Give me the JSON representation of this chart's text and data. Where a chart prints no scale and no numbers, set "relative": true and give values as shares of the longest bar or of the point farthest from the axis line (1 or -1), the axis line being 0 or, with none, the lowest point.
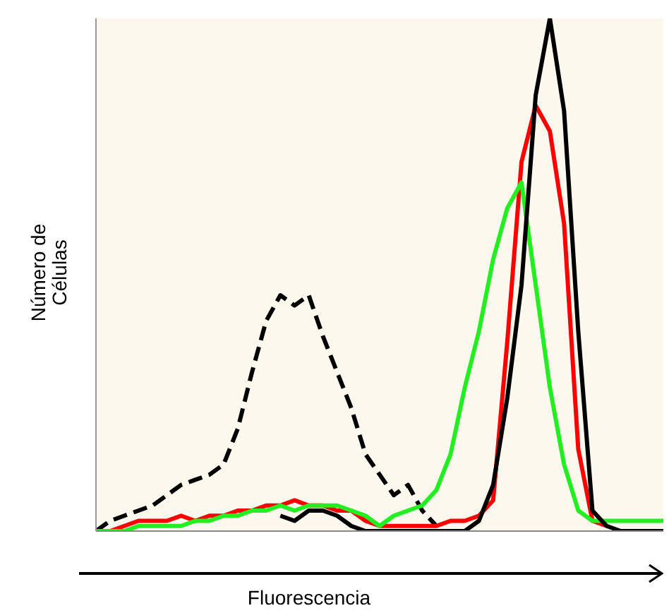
{
  "chart_data": {
    "type": "line",
    "relative": true,
    "xlabel": "Fluorescencia",
    "ylabel": "Número de Células",
    "legend": false,
    "grid": false,
    "marker": "none",
    "categories": [
      null,
      null,
      null,
      null,
      null,
      null,
      null,
      null,
      null,
      null,
      null,
      null,
      null,
      null,
      null,
      null,
      null,
      null,
      null,
      null,
      null,
      null,
      null,
      null,
      null,
      null,
      null,
      null,
      null,
      null,
      null,
      null,
      null,
      null,
      null,
      null,
      null,
      null,
      null,
      null,
      null
    ],
    "series": [
      {
        "color": "#000000",
        "line_style": "dashed",
        "values": [
          0,
          0.02,
          0.03,
          0.04,
          0.05,
          0.07,
          0.09,
          0.1,
          0.11,
          0.13,
          0.2,
          0.31,
          0.41,
          0.46,
          0.44,
          0.46,
          0.38,
          0.31,
          0.24,
          0.15,
          0.11,
          0.07,
          0.09,
          0.04,
          0.01,
          null,
          null,
          null,
          null,
          null,
          null,
          null,
          null,
          null,
          null,
          null,
          null,
          null,
          null,
          null,
          null
        ]
      },
      {
        "color": "#ff0000",
        "line_style": "solid",
        "values": [
          0,
          0,
          0.01,
          0.02,
          0.02,
          0.02,
          0.03,
          0.02,
          0.03,
          0.03,
          0.04,
          0.04,
          0.05,
          0.05,
          0.06,
          0.05,
          0.05,
          0.04,
          0.04,
          0.02,
          0.01,
          0.01,
          0.01,
          0.01,
          0.01,
          0.02,
          0.02,
          0.03,
          0.06,
          0.37,
          0.72,
          0.83,
          0.78,
          0.6,
          0.16,
          0.02,
          0.01,
          null,
          null,
          null,
          null
        ]
      },
      {
        "color": "#22ee22",
        "line_style": "solid",
        "values": [
          0,
          0,
          0,
          0.01,
          0.01,
          0.01,
          0.01,
          0.02,
          0.02,
          0.03,
          0.03,
          0.04,
          0.04,
          0.05,
          0.04,
          0.05,
          0.05,
          0.05,
          0.04,
          0.03,
          0.01,
          0.03,
          0.04,
          0.05,
          0.08,
          0.15,
          0.28,
          0.39,
          0.53,
          0.63,
          0.68,
          0.48,
          0.28,
          0.13,
          0.04,
          0.02,
          0.02,
          0.02,
          0.02,
          0.02,
          0.02
        ]
      },
      {
        "color": "#000000",
        "line_style": "solid",
        "values": [
          null,
          null,
          null,
          null,
          null,
          null,
          null,
          null,
          null,
          null,
          null,
          null,
          null,
          0.03,
          0.02,
          0.04,
          0.04,
          0.03,
          0.01,
          0,
          0,
          0,
          0,
          0,
          0,
          0,
          0,
          0.02,
          0.09,
          0.26,
          0.48,
          0.85,
          1,
          0.82,
          0.39,
          0.04,
          0.01,
          0,
          0,
          0,
          0
        ]
      }
    ]
  }
}
